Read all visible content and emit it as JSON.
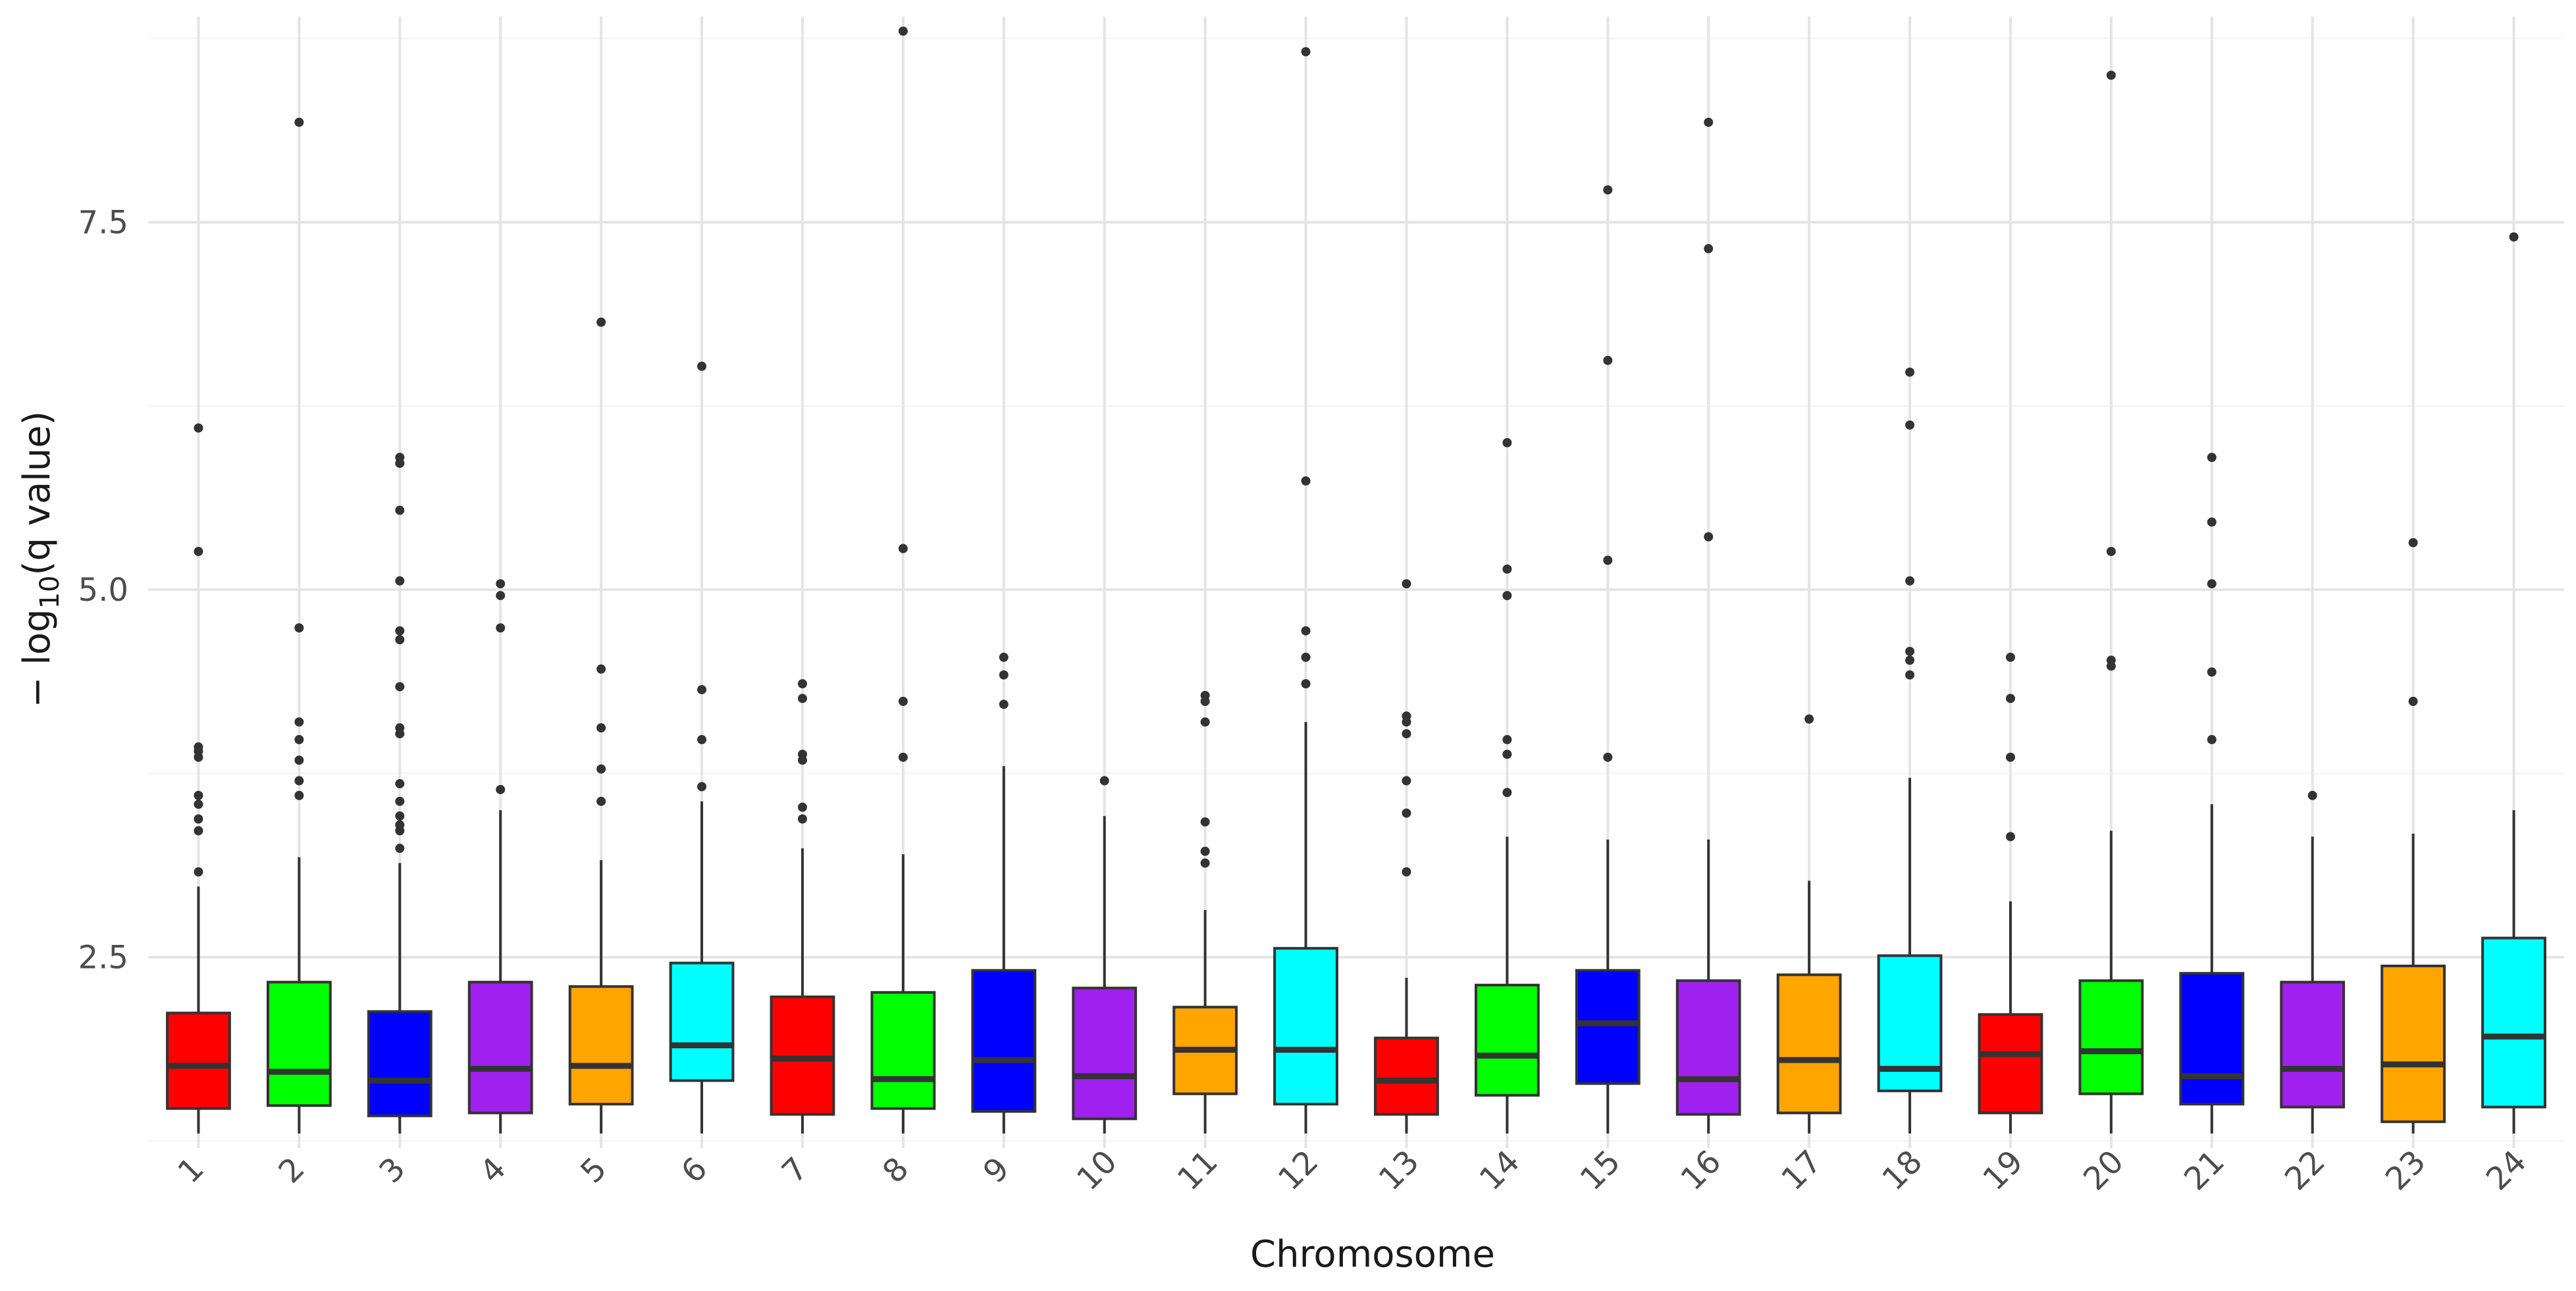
{
  "chart_data": {
    "type": "box",
    "xlabel": "Chromosome",
    "ylabel_parts": {
      "prefix": "− log",
      "sub": "10",
      "suffix": "(q value)"
    },
    "ylim": [
      1.2,
      8.9
    ],
    "yticks": [
      2.5,
      5.0,
      7.5
    ],
    "ytick_labels": [
      "2.5",
      "5.0",
      "7.5"
    ],
    "grid": true,
    "categories": [
      "1",
      "2",
      "3",
      "4",
      "5",
      "6",
      "7",
      "8",
      "9",
      "10",
      "11",
      "12",
      "13",
      "14",
      "15",
      "16",
      "17",
      "18",
      "19",
      "20",
      "21",
      "22",
      "23",
      "24"
    ],
    "colors": [
      "#ff0000",
      "#00ff00",
      "#0000ff",
      "#a020f0",
      "#ffa500",
      "#00ffff"
    ],
    "boxes": [
      {
        "q1": 1.47,
        "median": 1.76,
        "q3": 2.12,
        "lower": 1.3,
        "upper": 2.98,
        "outliers": [
          3.08,
          3.36,
          3.44,
          3.54,
          3.6,
          3.86,
          3.9,
          3.93,
          5.26,
          6.1
        ]
      },
      {
        "q1": 1.49,
        "median": 1.72,
        "q3": 2.33,
        "lower": 1.3,
        "upper": 3.18,
        "outliers": [
          3.6,
          3.7,
          3.84,
          3.98,
          4.1,
          4.74,
          8.18
        ]
      },
      {
        "q1": 1.42,
        "median": 1.66,
        "q3": 2.13,
        "lower": 1.3,
        "upper": 3.14,
        "outliers": [
          3.24,
          3.36,
          3.4,
          3.46,
          3.56,
          3.68,
          4.02,
          4.06,
          4.34,
          4.66,
          4.72,
          5.06,
          5.54,
          5.86,
          5.9
        ]
      },
      {
        "q1": 1.44,
        "median": 1.74,
        "q3": 2.33,
        "lower": 1.3,
        "upper": 3.5,
        "outliers": [
          3.64,
          4.74,
          4.96,
          5.04
        ]
      },
      {
        "q1": 1.5,
        "median": 1.76,
        "q3": 2.3,
        "lower": 1.3,
        "upper": 3.16,
        "outliers": [
          3.56,
          3.78,
          4.06,
          4.46,
          6.82
        ]
      },
      {
        "q1": 1.66,
        "median": 1.9,
        "q3": 2.46,
        "lower": 1.3,
        "upper": 3.56,
        "outliers": [
          3.66,
          3.98,
          4.32,
          6.52
        ]
      },
      {
        "q1": 1.43,
        "median": 1.81,
        "q3": 2.23,
        "lower": 1.3,
        "upper": 3.24,
        "outliers": [
          3.44,
          3.52,
          3.84,
          3.88,
          4.26,
          4.36
        ]
      },
      {
        "q1": 1.47,
        "median": 1.67,
        "q3": 2.26,
        "lower": 1.3,
        "upper": 3.2,
        "outliers": [
          3.86,
          4.24,
          5.28,
          8.8
        ]
      },
      {
        "q1": 1.45,
        "median": 1.8,
        "q3": 2.41,
        "lower": 1.3,
        "upper": 3.8,
        "outliers": [
          4.22,
          4.42,
          4.54
        ]
      },
      {
        "q1": 1.4,
        "median": 1.69,
        "q3": 2.29,
        "lower": 1.3,
        "upper": 3.46,
        "outliers": [
          3.7
        ]
      },
      {
        "q1": 1.57,
        "median": 1.87,
        "q3": 2.16,
        "lower": 1.3,
        "upper": 2.82,
        "outliers": [
          3.14,
          3.22,
          3.42,
          4.1,
          4.24,
          4.28
        ]
      },
      {
        "q1": 1.5,
        "median": 1.87,
        "q3": 2.56,
        "lower": 1.3,
        "upper": 4.1,
        "outliers": [
          4.36,
          4.54,
          4.72,
          5.74,
          8.66
        ]
      },
      {
        "q1": 1.43,
        "median": 1.66,
        "q3": 1.95,
        "lower": 1.3,
        "upper": 2.36,
        "outliers": [
          3.08,
          3.48,
          3.7,
          4.02,
          4.1,
          4.14,
          5.04
        ]
      },
      {
        "q1": 1.56,
        "median": 1.83,
        "q3": 2.31,
        "lower": 1.3,
        "upper": 3.32,
        "outliers": [
          3.62,
          3.88,
          3.98,
          4.96,
          5.14,
          6.0
        ]
      },
      {
        "q1": 1.64,
        "median": 2.05,
        "q3": 2.41,
        "lower": 1.3,
        "upper": 3.3,
        "outliers": [
          3.86,
          5.2,
          6.56,
          7.72
        ]
      },
      {
        "q1": 1.43,
        "median": 1.67,
        "q3": 2.34,
        "lower": 1.3,
        "upper": 3.3,
        "outliers": [
          5.36,
          7.32,
          8.18
        ]
      },
      {
        "q1": 1.44,
        "median": 1.8,
        "q3": 2.38,
        "lower": 1.3,
        "upper": 3.02,
        "outliers": [
          4.12
        ]
      },
      {
        "q1": 1.59,
        "median": 1.74,
        "q3": 2.51,
        "lower": 1.3,
        "upper": 3.72,
        "outliers": [
          4.42,
          4.52,
          4.58,
          5.06,
          6.12,
          6.48
        ]
      },
      {
        "q1": 1.44,
        "median": 1.84,
        "q3": 2.11,
        "lower": 1.3,
        "upper": 2.88,
        "outliers": [
          3.32,
          3.86,
          4.26,
          4.54
        ]
      },
      {
        "q1": 1.57,
        "median": 1.86,
        "q3": 2.34,
        "lower": 1.3,
        "upper": 3.36,
        "outliers": [
          4.48,
          4.52,
          5.26,
          8.5
        ]
      },
      {
        "q1": 1.5,
        "median": 1.69,
        "q3": 2.39,
        "lower": 1.3,
        "upper": 3.54,
        "outliers": [
          3.98,
          4.44,
          5.04,
          5.46,
          5.9
        ]
      },
      {
        "q1": 1.48,
        "median": 1.74,
        "q3": 2.33,
        "lower": 1.3,
        "upper": 3.32,
        "outliers": [
          3.6
        ]
      },
      {
        "q1": 1.38,
        "median": 1.77,
        "q3": 2.44,
        "lower": 1.3,
        "upper": 3.34,
        "outliers": [
          4.24,
          5.32
        ]
      },
      {
        "q1": 1.48,
        "median": 1.96,
        "q3": 2.63,
        "lower": 1.3,
        "upper": 3.5,
        "outliers": [
          7.4
        ]
      }
    ]
  }
}
